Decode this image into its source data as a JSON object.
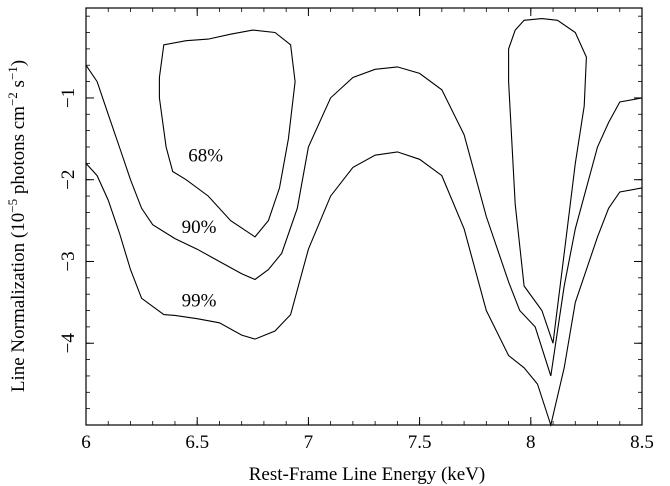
{
  "chart_data": {
    "type": "line",
    "xlabel": "Rest-Frame Line Energy (keV)",
    "ylabel_main": "Line Normalization (10",
    "ylabel_exp1": "−5",
    "ylabel_mid": " photons cm",
    "ylabel_exp2": "−2",
    "ylabel_mid2": " s",
    "ylabel_exp3": "−1",
    "ylabel_end": ")",
    "xlim": [
      6,
      8.5
    ],
    "ylim": [
      -5,
      0.1
    ],
    "x_ticks": [
      {
        "value": 6,
        "label": "6"
      },
      {
        "value": 6.5,
        "label": "6.5"
      },
      {
        "value": 7,
        "label": "7"
      },
      {
        "value": 7.5,
        "label": "7.5"
      },
      {
        "value": 8,
        "label": "8"
      },
      {
        "value": 8.5,
        "label": "8.5"
      }
    ],
    "y_ticks": [
      {
        "value": -1,
        "label": "−1"
      },
      {
        "value": -2,
        "label": "−2"
      },
      {
        "value": -3,
        "label": "−3"
      },
      {
        "value": -4,
        "label": "−4"
      }
    ],
    "contours": [
      {
        "name": "68%",
        "segments": [
          [
            [
              6.33,
              -0.75
            ],
            [
              6.35,
              -0.35
            ],
            [
              6.45,
              -0.3
            ],
            [
              6.55,
              -0.28
            ],
            [
              6.65,
              -0.22
            ],
            [
              6.75,
              -0.17
            ],
            [
              6.85,
              -0.2
            ],
            [
              6.92,
              -0.35
            ],
            [
              6.94,
              -0.8
            ],
            [
              6.91,
              -1.5
            ],
            [
              6.87,
              -2.1
            ],
            [
              6.82,
              -2.5
            ],
            [
              6.76,
              -2.7
            ],
            [
              6.65,
              -2.5
            ],
            [
              6.55,
              -2.2
            ],
            [
              6.45,
              -2.0
            ],
            [
              6.39,
              -1.9
            ],
            [
              6.36,
              -1.6
            ],
            [
              6.33,
              -1.0
            ],
            [
              6.33,
              -0.75
            ]
          ],
          [
            [
              7.93,
              -0.17
            ],
            [
              7.97,
              -0.05
            ],
            [
              8.05,
              -0.03
            ],
            [
              8.12,
              -0.05
            ],
            [
              8.2,
              -0.2
            ],
            [
              8.25,
              -0.5
            ],
            [
              8.24,
              -1.1
            ],
            [
              8.2,
              -1.8
            ],
            [
              8.15,
              -2.9
            ],
            [
              8.1,
              -4.0
            ],
            [
              8.05,
              -3.6
            ],
            [
              7.97,
              -3.3
            ],
            [
              7.93,
              -2.3
            ],
            [
              7.9,
              -0.8
            ],
            [
              7.9,
              -0.4
            ],
            [
              7.93,
              -0.17
            ]
          ]
        ]
      },
      {
        "name": "90%",
        "segments": [
          [
            [
              6.0,
              -0.6
            ],
            [
              6.05,
              -0.8
            ],
            [
              6.1,
              -1.2
            ],
            [
              6.15,
              -1.6
            ],
            [
              6.2,
              -2.0
            ],
            [
              6.25,
              -2.35
            ],
            [
              6.3,
              -2.55
            ],
            [
              6.4,
              -2.72
            ],
            [
              6.5,
              -2.85
            ],
            [
              6.6,
              -3.0
            ],
            [
              6.7,
              -3.15
            ],
            [
              6.76,
              -3.22
            ],
            [
              6.82,
              -3.1
            ],
            [
              6.88,
              -2.9
            ],
            [
              6.95,
              -2.35
            ],
            [
              7.0,
              -1.6
            ],
            [
              7.1,
              -1.0
            ],
            [
              7.2,
              -0.75
            ],
            [
              7.3,
              -0.65
            ],
            [
              7.4,
              -0.62
            ],
            [
              7.5,
              -0.7
            ],
            [
              7.6,
              -0.9
            ],
            [
              7.7,
              -1.45
            ],
            [
              7.8,
              -2.45
            ],
            [
              7.9,
              -3.25
            ],
            [
              7.95,
              -3.6
            ],
            [
              8.02,
              -3.8
            ],
            [
              8.09,
              -4.4
            ],
            [
              8.15,
              -3.3
            ],
            [
              8.2,
              -2.6
            ],
            [
              8.3,
              -1.6
            ],
            [
              8.35,
              -1.3
            ],
            [
              8.4,
              -1.05
            ],
            [
              8.5,
              -1.0
            ]
          ]
        ]
      },
      {
        "name": "99%",
        "segments": [
          [
            [
              6.0,
              -1.8
            ],
            [
              6.05,
              -1.95
            ],
            [
              6.1,
              -2.25
            ],
            [
              6.15,
              -2.65
            ],
            [
              6.2,
              -3.1
            ],
            [
              6.25,
              -3.45
            ],
            [
              6.3,
              -3.55
            ],
            [
              6.35,
              -3.65
            ],
            [
              6.4,
              -3.66
            ],
            [
              6.5,
              -3.7
            ],
            [
              6.6,
              -3.75
            ],
            [
              6.7,
              -3.9
            ],
            [
              6.76,
              -3.95
            ],
            [
              6.85,
              -3.85
            ],
            [
              6.92,
              -3.65
            ],
            [
              7.0,
              -2.85
            ],
            [
              7.1,
              -2.2
            ],
            [
              7.2,
              -1.85
            ],
            [
              7.3,
              -1.7
            ],
            [
              7.4,
              -1.66
            ],
            [
              7.5,
              -1.75
            ],
            [
              7.6,
              -1.95
            ],
            [
              7.7,
              -2.6
            ],
            [
              7.8,
              -3.6
            ],
            [
              7.9,
              -4.15
            ],
            [
              7.97,
              -4.3
            ],
            [
              8.03,
              -4.5
            ],
            [
              8.09,
              -5.0
            ],
            [
              8.15,
              -4.3
            ],
            [
              8.2,
              -3.5
            ],
            [
              8.3,
              -2.7
            ],
            [
              8.35,
              -2.35
            ],
            [
              8.4,
              -2.15
            ],
            [
              8.5,
              -2.1
            ]
          ]
        ]
      }
    ],
    "annotations": [
      {
        "text": "68%",
        "x": 6.46,
        "y": -1.78
      },
      {
        "text": "90%",
        "x": 6.43,
        "y": -2.65
      },
      {
        "text": "99%",
        "x": 6.43,
        "y": -3.55
      }
    ]
  }
}
